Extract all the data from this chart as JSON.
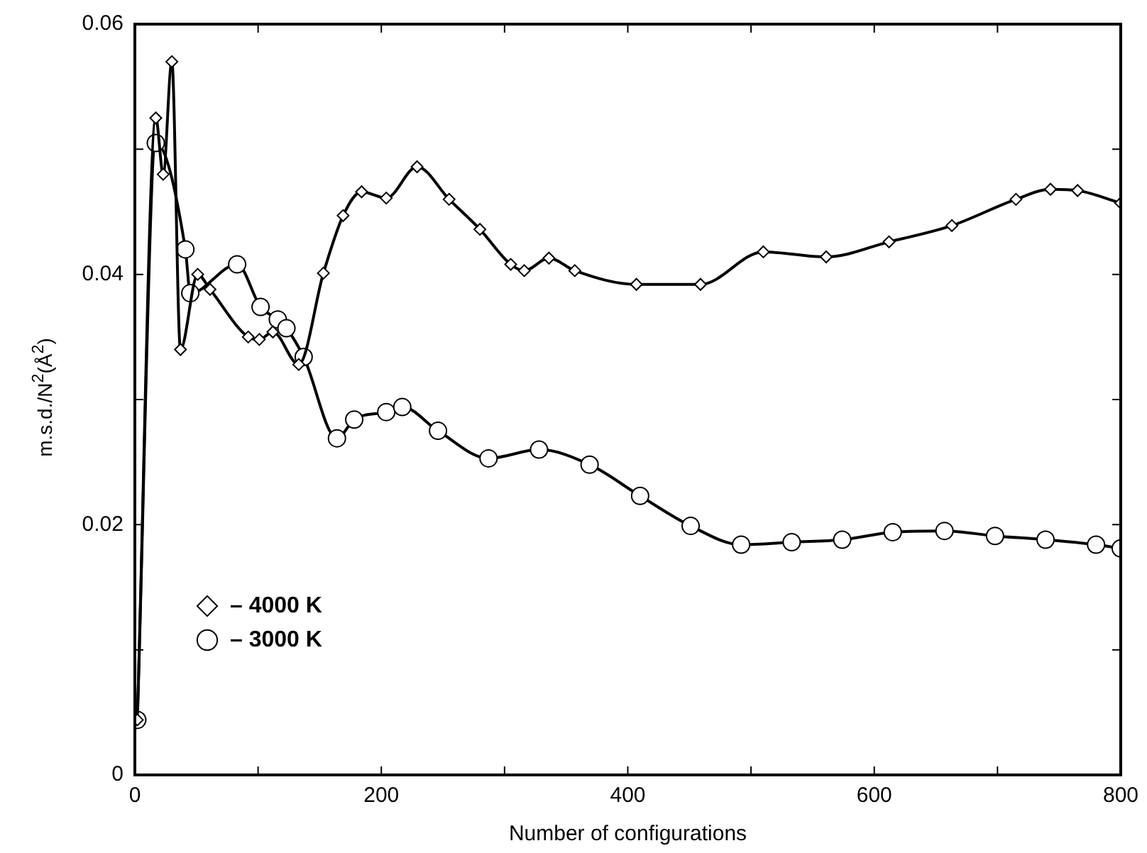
{
  "chart_data": {
    "type": "line",
    "xlabel": "Number of configurations",
    "ylabel": "m.s.d./N$^{2}$(Å$^{2}$)",
    "xlim": [
      0,
      800
    ],
    "xticks": [
      0,
      {
        "value": 100,
        "label": null
      },
      200,
      {
        "value": 300,
        "label": null
      },
      400,
      {
        "value": 500,
        "label": null
      },
      600,
      {
        "value": 700,
        "label": null
      },
      800
    ],
    "ylim": [
      0,
      0.06
    ],
    "yticks": [
      0,
      {
        "value": 0.01,
        "label": null
      },
      0.02,
      {
        "value": 0.03,
        "label": null
      },
      0.04,
      {
        "value": 0.05,
        "label": null
      },
      0.06
    ],
    "grid": false,
    "legend": "bottom left",
    "line_style": "solid",
    "series": [
      {
        "name": "– 3000 K",
        "color": "#000000",
        "marker": "circle",
        "x": [
          2,
          17,
          41,
          45,
          83,
          102,
          116,
          123,
          137,
          164,
          178,
          204,
          217,
          246,
          287,
          328,
          369,
          410,
          451,
          492,
          533,
          574,
          615,
          657,
          698,
          739,
          780,
          800
        ],
        "values": [
          0.0044,
          0.0505,
          0.042,
          0.0385,
          0.0408,
          0.0374,
          0.0364,
          0.0357,
          0.0334,
          0.0269,
          0.0284,
          0.029,
          0.0294,
          0.0275,
          0.0253,
          0.026,
          0.0248,
          0.0223,
          0.0199,
          0.0184,
          0.0186,
          0.0188,
          0.0194,
          0.0195,
          0.0191,
          0.0188,
          0.0184,
          0.0181
        ]
      },
      {
        "name": "– 4000 K",
        "color": "#000000",
        "marker": "diamond",
        "x": [
          2,
          17,
          23,
          30,
          37,
          51,
          61,
          92,
          101,
          112,
          133,
          153,
          169,
          184,
          204,
          229,
          255,
          280,
          305,
          316,
          336,
          357,
          407,
          459,
          510,
          561,
          612,
          663,
          715,
          743,
          765,
          800
        ],
        "values": [
          0.0044,
          0.0525,
          0.048,
          0.057,
          0.034,
          0.04,
          0.0388,
          0.035,
          0.0348,
          0.0354,
          0.0328,
          0.0401,
          0.0447,
          0.0466,
          0.0461,
          0.0486,
          0.046,
          0.0436,
          0.0408,
          0.0403,
          0.0413,
          0.0403,
          0.0392,
          0.0392,
          0.0418,
          0.0414,
          0.0426,
          0.0439,
          0.046,
          0.0468,
          0.0467,
          0.0457
        ]
      }
    ]
  }
}
